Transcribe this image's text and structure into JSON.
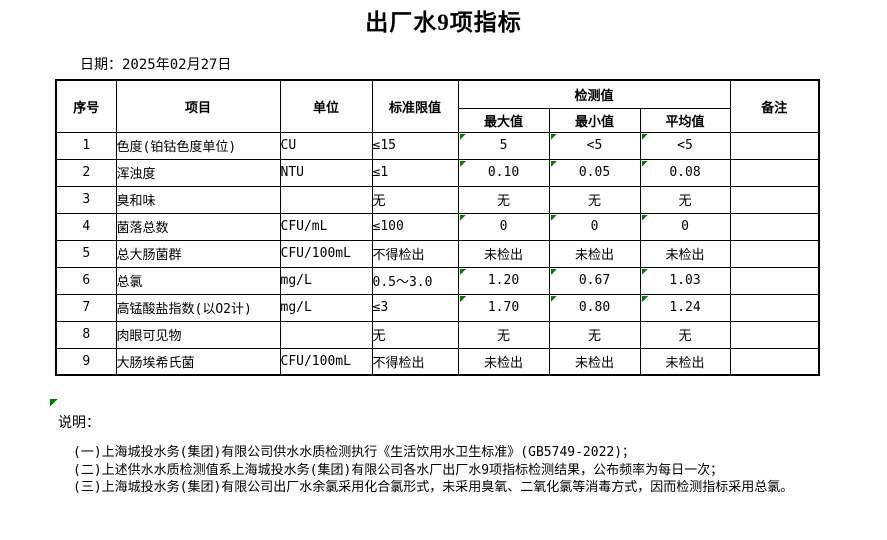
{
  "page": {
    "title": "出厂水9项指标",
    "date_label": "日期：",
    "date_value": "2025年02月27日"
  },
  "table": {
    "headers": {
      "no": "序号",
      "item": "项目",
      "unit": "单位",
      "limit": "标准限值",
      "detection": "检测值",
      "max": "最大值",
      "min": "最小值",
      "avg": "平均值",
      "remark": "备注"
    },
    "rows": [
      {
        "no": "1",
        "item": "色度(铂钴色度单位)",
        "unit": "CU",
        "limit": "≤15",
        "max": "5",
        "min": "<5",
        "avg": "<5",
        "remark": "",
        "flagged": true
      },
      {
        "no": "2",
        "item": "浑浊度",
        "unit": "NTU",
        "limit": "≤1",
        "max": "0.10",
        "min": "0.05",
        "avg": "0.08",
        "remark": "",
        "flagged": true
      },
      {
        "no": "3",
        "item": "臭和味",
        "unit": "",
        "limit": "无",
        "max": "无",
        "min": "无",
        "avg": "无",
        "remark": "",
        "flagged": false
      },
      {
        "no": "4",
        "item": "菌落总数",
        "unit": "CFU/mL",
        "limit": "≤100",
        "max": "0",
        "min": "0",
        "avg": "0",
        "remark": "",
        "flagged": true
      },
      {
        "no": "5",
        "item": "总大肠菌群",
        "unit": "CFU/100mL",
        "limit": "不得检出",
        "max": "未检出",
        "min": "未检出",
        "avg": "未检出",
        "remark": "",
        "flagged": false
      },
      {
        "no": "6",
        "item": "总氯",
        "unit": "mg/L",
        "limit": "0.5～3.0",
        "max": "1.20",
        "min": "0.67",
        "avg": "1.03",
        "remark": "",
        "flagged": true
      },
      {
        "no": "7",
        "item": "高锰酸盐指数(以O2计)",
        "unit": "mg/L",
        "limit": "≤3",
        "max": "1.70",
        "min": "0.80",
        "avg": "1.24",
        "remark": "",
        "flagged": true
      },
      {
        "no": "8",
        "item": "肉眼可见物",
        "unit": "",
        "limit": "无",
        "max": "无",
        "min": "无",
        "avg": "无",
        "remark": "",
        "flagged": false
      },
      {
        "no": "9",
        "item": "大肠埃希氏菌",
        "unit": "CFU/100mL",
        "limit": "不得检出",
        "max": "未检出",
        "min": "未检出",
        "avg": "未检出",
        "remark": "",
        "flagged": false
      }
    ]
  },
  "notes": {
    "label": "说明：",
    "items": [
      "(一)上海城投水务(集团)有限公司供水水质检测执行《生活饮用水卫生标准》(GB5749-2022)；",
      "(二)上述供水水质检测值系上海城投水务(集团)有限公司各水厂出厂水9项指标检测结果，公布频率为每日一次；",
      "(三)上海城投水务(集团)有限公司出厂水余氯采用化合氯形式，未采用臭氧、二氧化氯等消毒方式，因而检测指标采用总氯。"
    ]
  },
  "colors": {
    "flag_green": "#008000",
    "border": "#000000",
    "background": "#ffffff",
    "text": "#000000"
  }
}
